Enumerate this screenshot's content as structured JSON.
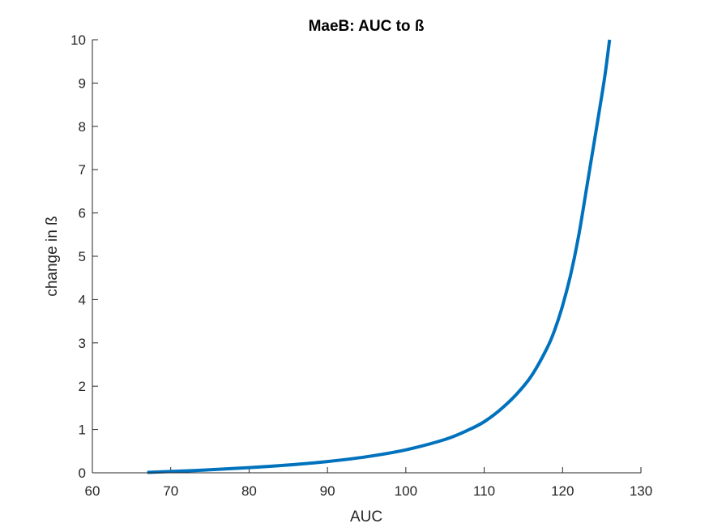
{
  "chart_data": {
    "type": "line",
    "title": "MaeB: AUC to ß",
    "xlabel": "AUC",
    "ylabel": "change in ß",
    "xlim": [
      60,
      130
    ],
    "ylim": [
      0,
      10
    ],
    "xticks": [
      "60",
      "70",
      "80",
      "90",
      "100",
      "110",
      "120",
      "130"
    ],
    "yticks": [
      "0",
      "1",
      "2",
      "3",
      "4",
      "5",
      "6",
      "7",
      "8",
      "9",
      "10"
    ],
    "grid": false,
    "line_color": "#0072BD",
    "series": [
      {
        "x": [
          67,
          70,
          75,
          80,
          85,
          90,
          95,
          100,
          105,
          108,
          110,
          112,
          114,
          116,
          118,
          119,
          120,
          121,
          122,
          123,
          124,
          125,
          125.5,
          126
        ],
        "y": [
          0.01,
          0.03,
          0.07,
          0.12,
          0.18,
          0.26,
          0.37,
          0.53,
          0.77,
          0.99,
          1.18,
          1.45,
          1.79,
          2.23,
          2.87,
          3.3,
          3.86,
          4.55,
          5.42,
          6.5,
          7.6,
          8.7,
          9.3,
          10.0
        ]
      }
    ]
  }
}
